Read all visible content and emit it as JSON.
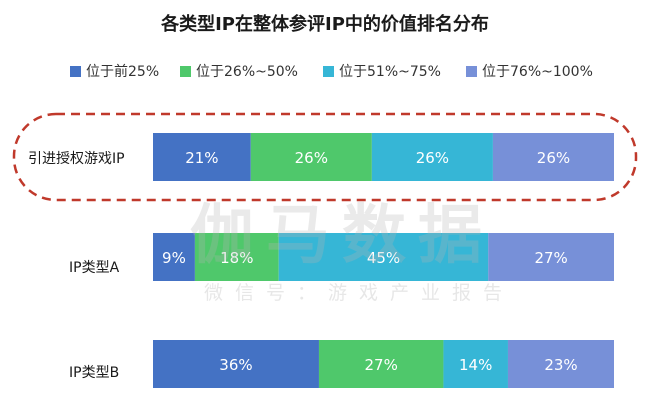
{
  "chart_data": {
    "type": "bar",
    "orientation": "horizontal",
    "stacked": true,
    "title": "各类型IP在整体参评IP中的价值排名分布",
    "categories": [
      "引进授权游戏IP",
      "IP类型A",
      "IP类型B"
    ],
    "series": [
      {
        "name": "位于前25%",
        "values": [
          21,
          9,
          36
        ],
        "labels": [
          "21%",
          "9%",
          "36%"
        ],
        "color": "#4472c4"
      },
      {
        "name": "位于26%~50%",
        "values": [
          26,
          18,
          27
        ],
        "labels": [
          "26%",
          "18%",
          "27%"
        ],
        "color": "#4fc86b"
      },
      {
        "name": "位于51%~75%",
        "values": [
          26,
          45,
          14
        ],
        "labels": [
          "26%",
          "45%",
          "14%"
        ],
        "color": "#36b6d6"
      },
      {
        "name": "位于76%~100%",
        "values": [
          26,
          27,
          23
        ],
        "labels": [
          "26%",
          "27%",
          "23%"
        ],
        "color": "#7790d8"
      }
    ],
    "legend_position": "top",
    "grid": false,
    "highlight": {
      "category": "引进授权游戏IP",
      "style": "dashed-red-rounded-outline",
      "color": "#c0392b"
    }
  },
  "watermark": {
    "main": "伽马数据",
    "sub": "微信号：游戏产业报告"
  }
}
